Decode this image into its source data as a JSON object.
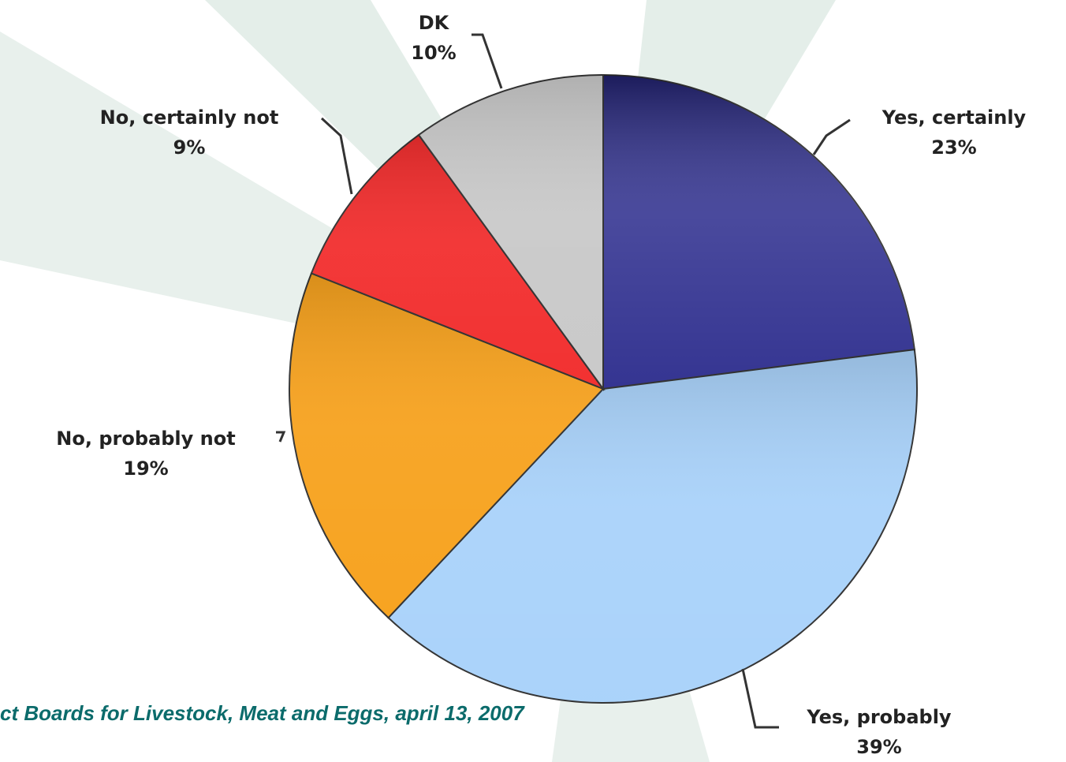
{
  "chart_data": {
    "type": "pie",
    "categories": [
      "Yes, certainly",
      "Yes, probably",
      "No, probably not",
      "No, certainly not",
      "DK"
    ],
    "values": [
      23,
      39,
      19,
      9,
      10
    ],
    "value_labels": [
      "23%",
      "39%",
      "19%",
      "9%",
      "10%"
    ],
    "colors": [
      "#2a2a8c",
      "#a9d2fa",
      "#f7a21e",
      "#f22e2e",
      "#c9c9c9"
    ],
    "source": "ct Boards for Livestock, Meat and Eggs, april 13, 2007"
  }
}
